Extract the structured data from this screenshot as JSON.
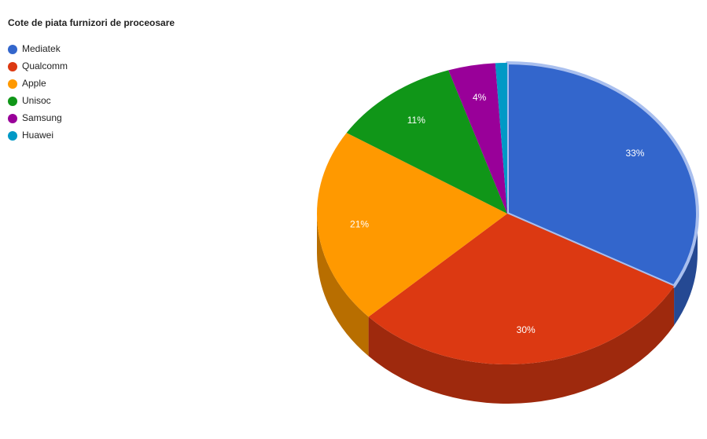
{
  "chart_data": {
    "type": "pie",
    "title": "Cote de piata furnizori de proceosare",
    "categories": [
      "Mediatek",
      "Qualcomm",
      "Apple",
      "Unisoc",
      "Samsung",
      "Huawei"
    ],
    "values": [
      33,
      30,
      21,
      11,
      4,
      1
    ],
    "value_labels": [
      "33%",
      "30%",
      "21%",
      "11%",
      "4%",
      null
    ],
    "colors": [
      "#3366cc",
      "#dc3912",
      "#ff9900",
      "#109618",
      "#990099",
      "#0099c6"
    ],
    "legend": "left",
    "is3D": true
  }
}
